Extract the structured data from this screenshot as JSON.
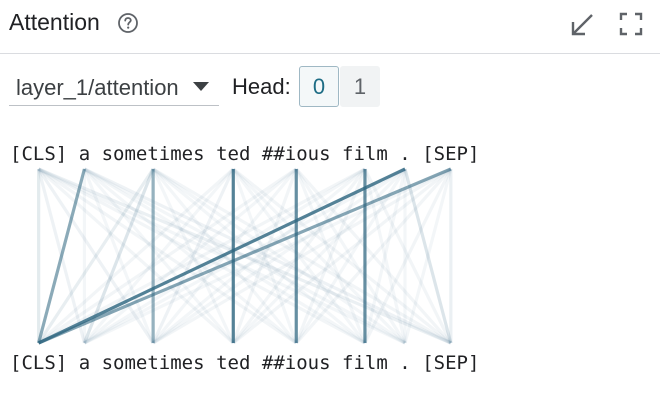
{
  "header": {
    "title": "Attention"
  },
  "controls": {
    "layer_value": "layer_1/attention",
    "head_label": "Head:",
    "heads": [
      "0",
      "1"
    ],
    "selected_head": "0"
  },
  "tokens": [
    "[CLS]",
    "a",
    "sometimes",
    "ted",
    "##ious",
    "film",
    ".",
    "[SEP]"
  ],
  "colors": {
    "accent": "#1e6d85",
    "edge": "#2e6680"
  },
  "attention": [
    [
      0.25,
      0.18,
      0.18,
      0.15,
      0.15,
      0.15,
      0.12,
      0.2
    ],
    [
      0.7,
      0.12,
      0.12,
      0.1,
      0.1,
      0.1,
      0.1,
      0.18
    ],
    [
      0.22,
      0.3,
      0.65,
      0.12,
      0.12,
      0.12,
      0.12,
      0.15
    ],
    [
      0.15,
      0.12,
      0.18,
      0.92,
      0.12,
      0.12,
      0.1,
      0.15
    ],
    [
      0.15,
      0.12,
      0.12,
      0.15,
      0.85,
      0.12,
      0.1,
      0.15
    ],
    [
      0.15,
      0.1,
      0.12,
      0.15,
      0.15,
      0.85,
      0.1,
      0.15
    ],
    [
      0.92,
      0.12,
      0.1,
      0.12,
      0.12,
      0.12,
      0.1,
      0.3
    ],
    [
      0.72,
      0.12,
      0.15,
      0.15,
      0.15,
      0.15,
      0.12,
      0.2
    ]
  ]
}
